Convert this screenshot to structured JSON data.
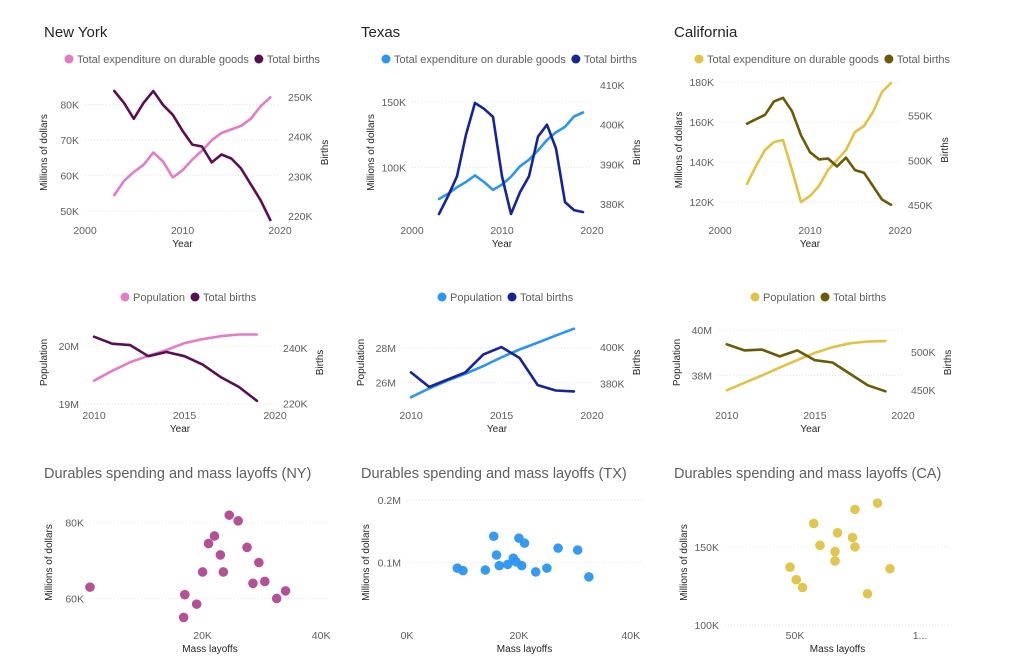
{
  "charts": [
    {
      "id": "ny-spend-births",
      "title": "New York",
      "legend": [
        {
          "name": "Total expenditure on durable goods",
          "color": "#e37bc6"
        },
        {
          "name": "Total births",
          "color": "#5a0f52"
        }
      ],
      "xlabel": "Year",
      "y1label": "Millions of dollars",
      "y2label": "Births",
      "xticks": [
        "2000",
        "2010",
        "2020"
      ],
      "y1ticks": [
        "50K",
        "60K",
        "70K",
        "80K"
      ],
      "y2ticks": [
        "220K",
        "230K",
        "240K",
        "250K"
      ]
    },
    {
      "id": "tx-spend-births",
      "title": "Texas",
      "legend": [
        {
          "name": "Total expenditure on durable goods",
          "color": "#2c95f0"
        },
        {
          "name": "Total births",
          "color": "#16239a"
        }
      ],
      "xlabel": "Year",
      "y1label": "Millions of dollars",
      "y2label": "Births",
      "xticks": [
        "2000",
        "2010",
        "2020"
      ],
      "y1ticks": [
        "100K",
        "150K"
      ],
      "y2ticks": [
        "380K",
        "390K",
        "400K",
        "410K"
      ]
    },
    {
      "id": "ca-spend-births",
      "title": "California",
      "legend": [
        {
          "name": "Total expenditure on durable goods",
          "color": "#e0c244"
        },
        {
          "name": "Total births",
          "color": "#6b5a06"
        }
      ],
      "xlabel": "Year",
      "y1label": "Millions of dollars",
      "y2label": "Births",
      "xticks": [
        "2000",
        "2010",
        "2020"
      ],
      "y1ticks": [
        "120K",
        "140K",
        "160K",
        "180K"
      ],
      "y2ticks": [
        "450K",
        "500K",
        "550K"
      ]
    },
    {
      "id": "ny-pop-births",
      "title": "",
      "legend": [
        {
          "name": "Population",
          "color": "#e37bc6"
        },
        {
          "name": "Total births",
          "color": "#5a0f52"
        }
      ],
      "xlabel": "Year",
      "y1label": "Population",
      "y2label": "Births",
      "xticks": [
        "2010",
        "2015",
        "2020"
      ],
      "y1ticks": [
        "19M",
        "20M"
      ],
      "y2ticks": [
        "220K",
        "240K"
      ]
    },
    {
      "id": "tx-pop-births",
      "title": "",
      "legend": [
        {
          "name": "Population",
          "color": "#2c95f0"
        },
        {
          "name": "Total births",
          "color": "#16239a"
        }
      ],
      "xlabel": "Year",
      "y1label": "Population",
      "y2label": "Births",
      "xticks": [
        "2010",
        "2015",
        "2020"
      ],
      "y1ticks": [
        "26M",
        "28M"
      ],
      "y2ticks": [
        "380K",
        "400K"
      ]
    },
    {
      "id": "ca-pop-births",
      "title": "",
      "legend": [
        {
          "name": "Population",
          "color": "#e0c244"
        },
        {
          "name": "Total births",
          "color": "#6b5a06"
        }
      ],
      "xlabel": "Year",
      "y1label": "Population",
      "y2label": "Births",
      "xticks": [
        "2010",
        "2015",
        "2020"
      ],
      "y1ticks": [
        "38M",
        "40M"
      ],
      "y2ticks": [
        "450K",
        "500K"
      ]
    },
    {
      "id": "ny-scatter",
      "title": "Durables spending and mass layoffs (NY)",
      "legend": [],
      "xlabel": "Mass layoffs",
      "y1label": "Millions of dollars",
      "y2label": "",
      "xticks": [
        "20K",
        "40K"
      ],
      "y1ticks": [
        "60K",
        "80K"
      ],
      "y2ticks": [],
      "color": "#b0488f"
    },
    {
      "id": "tx-scatter",
      "title": "Durables spending and mass layoffs (TX)",
      "legend": [],
      "xlabel": "Mass layoffs",
      "y1label": "Millions of dollars",
      "y2label": "",
      "xticks": [
        "0K",
        "20K",
        "40K"
      ],
      "y1ticks": [
        "0.1M",
        "0.2M"
      ],
      "y2ticks": [],
      "color": "#2c95f0"
    },
    {
      "id": "ca-scatter",
      "title": "Durables spending and mass layoffs (CA)",
      "legend": [],
      "xlabel": "Mass layoffs",
      "y1label": "Millions of dollars",
      "y2label": "",
      "xticks": [
        "50K",
        "1..."
      ],
      "y1ticks": [
        "100K",
        "150K"
      ],
      "y2ticks": [],
      "color": "#e0c244"
    }
  ],
  "chart_data": [
    {
      "type": "line",
      "title": "New York",
      "x": [
        2003,
        2004,
        2005,
        2006,
        2007,
        2008,
        2009,
        2010,
        2011,
        2012,
        2013,
        2014,
        2015,
        2016,
        2017,
        2018,
        2019
      ],
      "xlim": [
        2000,
        2020
      ],
      "series": [
        {
          "name": "Total expenditure on durable goods",
          "axis": "left",
          "color": "#e37bc6",
          "values": [
            54500,
            58500,
            61000,
            63000,
            66500,
            64000,
            59500,
            61500,
            64500,
            67000,
            70000,
            72000,
            73000,
            74000,
            76000,
            79500,
            82000
          ]
        },
        {
          "name": "Total births",
          "axis": "right",
          "color": "#5a0f52",
          "values": [
            251500,
            248500,
            244500,
            248500,
            251500,
            248000,
            245500,
            241500,
            238000,
            237500,
            233500,
            235500,
            234500,
            232000,
            228000,
            224000,
            219000
          ]
        }
      ],
      "ylim_left": [
        47500,
        85500
      ],
      "ylim_right": [
        219000,
        253000
      ]
    },
    {
      "type": "line",
      "title": "Texas",
      "x": [
        2003,
        2004,
        2005,
        2006,
        2007,
        2008,
        2009,
        2010,
        2011,
        2012,
        2013,
        2014,
        2015,
        2016,
        2017,
        2018,
        2019
      ],
      "xlim": [
        2000,
        2020
      ],
      "series": [
        {
          "name": "Total expenditure on durable goods",
          "axis": "left",
          "color": "#2c95f0",
          "values": [
            76000,
            80000,
            85000,
            89000,
            94000,
            89000,
            83000,
            87000,
            93000,
            101000,
            106000,
            113000,
            121000,
            127000,
            131000,
            139000,
            142000
          ]
        },
        {
          "name": "Total births",
          "axis": "right",
          "color": "#16239a",
          "values": [
            377500,
            382000,
            387000,
            397500,
            405500,
            404000,
            402000,
            387000,
            377500,
            383000,
            387000,
            397000,
            400000,
            394000,
            380500,
            378500,
            378000
          ]
        }
      ],
      "ylim_left": [
        60000,
        163000
      ],
      "ylim_right": [
        376000,
        410000
      ]
    },
    {
      "type": "line",
      "title": "California",
      "x": [
        2003,
        2004,
        2005,
        2006,
        2007,
        2008,
        2009,
        2010,
        2011,
        2012,
        2013,
        2014,
        2015,
        2016,
        2017,
        2018,
        2019
      ],
      "xlim": [
        2000,
        2020
      ],
      "series": [
        {
          "name": "Total expenditure on durable goods",
          "axis": "left",
          "color": "#e0c244",
          "values": [
            129000,
            138000,
            146000,
            150000,
            151000,
            136000,
            120000,
            123000,
            128000,
            136000,
            141000,
            146000,
            155000,
            158000,
            165000,
            175000,
            179500
          ]
        },
        {
          "name": "Total births",
          "axis": "right",
          "color": "#6b5a06",
          "values": [
            541000,
            546000,
            551000,
            566000,
            570000,
            555000,
            528000,
            509000,
            501000,
            502000,
            493000,
            503000,
            489000,
            486000,
            471000,
            456000,
            450000
          ]
        }
      ],
      "ylim_left": [
        111000,
        181000
      ],
      "ylim_right": [
        433000,
        590000
      ]
    },
    {
      "type": "line",
      "title": "",
      "x": [
        2010,
        2011,
        2012,
        2013,
        2014,
        2015,
        2016,
        2017,
        2018,
        2019
      ],
      "xlim": [
        2009.5,
        2020
      ],
      "series": [
        {
          "name": "Population",
          "axis": "left",
          "color": "#e37bc6",
          "values": [
            19400000,
            19570000,
            19720000,
            19830000,
            19930000,
            20050000,
            20120000,
            20170000,
            20200000,
            20200000
          ]
        },
        {
          "name": "Total births",
          "axis": "right",
          "color": "#5a0f52",
          "values": [
            244000,
            241500,
            241000,
            237000,
            238500,
            237000,
            234000,
            229500,
            226000,
            221000
          ]
        }
      ],
      "ylim_left": [
        18980000,
        20450000
      ],
      "ylim_right": [
        219500,
        250000
      ]
    },
    {
      "type": "line",
      "title": "",
      "x": [
        2010,
        2011,
        2012,
        2013,
        2014,
        2015,
        2016,
        2017,
        2018,
        2019
      ],
      "xlim": [
        2009.5,
        2020
      ],
      "series": [
        {
          "name": "Population",
          "axis": "left",
          "color": "#2c95f0",
          "values": [
            25150000,
            25650000,
            26100000,
            26500000,
            26950000,
            27450000,
            27900000,
            28300000,
            28700000,
            29100000
          ]
        },
        {
          "name": "Total births",
          "axis": "right",
          "color": "#16239a",
          "values": [
            386000,
            378000,
            382000,
            386000,
            396000,
            400000,
            394000,
            379000,
            376000,
            375500
          ]
        }
      ],
      "ylim_left": [
        24700000,
        29600000
      ],
      "ylim_right": [
        368000,
        415000
      ]
    },
    {
      "type": "line",
      "title": "",
      "x": [
        2010,
        2011,
        2012,
        2013,
        2014,
        2015,
        2016,
        2017,
        2018,
        2019
      ],
      "xlim": [
        2009.5,
        2020
      ],
      "series": [
        {
          "name": "Population",
          "axis": "left",
          "color": "#e0c244",
          "values": [
            37350000,
            37680000,
            38000000,
            38350000,
            38680000,
            39000000,
            39250000,
            39420000,
            39500000,
            39520000
          ]
        },
        {
          "name": "Total births",
          "axis": "right",
          "color": "#6b5a06",
          "values": [
            510000,
            502000,
            503000,
            494000,
            502000,
            489000,
            486000,
            471000,
            456000,
            448000
          ]
        }
      ],
      "ylim_left": [
        36700000,
        40450000
      ],
      "ylim_right": [
        430000,
        542000
      ]
    },
    {
      "type": "scatter",
      "title": "Durables spending and mass layoffs (NY)",
      "x": [
        1000,
        16800,
        17000,
        19000,
        20000,
        21000,
        22000,
        23000,
        23500,
        24500,
        26000,
        27500,
        28500,
        29500,
        30500,
        32500,
        34000
      ],
      "y": [
        63000,
        55000,
        61000,
        58500,
        67000,
        74500,
        76500,
        71500,
        67000,
        82000,
        80500,
        73500,
        64000,
        69500,
        64500,
        60000,
        62000
      ],
      "xlim": [
        1000,
        41500
      ],
      "ylim": [
        53000,
        86000
      ],
      "color": "#b0488f"
    },
    {
      "type": "scatter",
      "title": "Durables spending and mass layoffs (TX)",
      "x": [
        9000,
        10000,
        14000,
        15500,
        16000,
        16500,
        18000,
        19000,
        19500,
        20000,
        20500,
        21000,
        23000,
        25000,
        27000,
        30500,
        32500
      ],
      "y": [
        91000,
        87000,
        88000,
        142000,
        112000,
        95000,
        97000,
        107000,
        101000,
        139000,
        95000,
        131000,
        85000,
        91000,
        123000,
        120000,
        77000
      ],
      "xlim": [
        0,
        42000
      ],
      "ylim": [
        0,
        200000
      ],
      "color": "#2c95f0"
    },
    {
      "type": "scatter",
      "title": "Durables spending and mass layoffs (CA)",
      "x": [
        48000,
        50500,
        53000,
        57500,
        60000,
        66000,
        66000,
        67000,
        73000,
        74000,
        74000,
        79000,
        83000,
        88000
      ],
      "y": [
        137000,
        129000,
        124000,
        165000,
        151000,
        147000,
        141000,
        159000,
        156000,
        150000,
        174000,
        120000,
        178000,
        136000
      ],
      "xlim": [
        22000,
        112000
      ],
      "ylim": [
        100000,
        180000
      ],
      "color": "#e0c244"
    }
  ]
}
